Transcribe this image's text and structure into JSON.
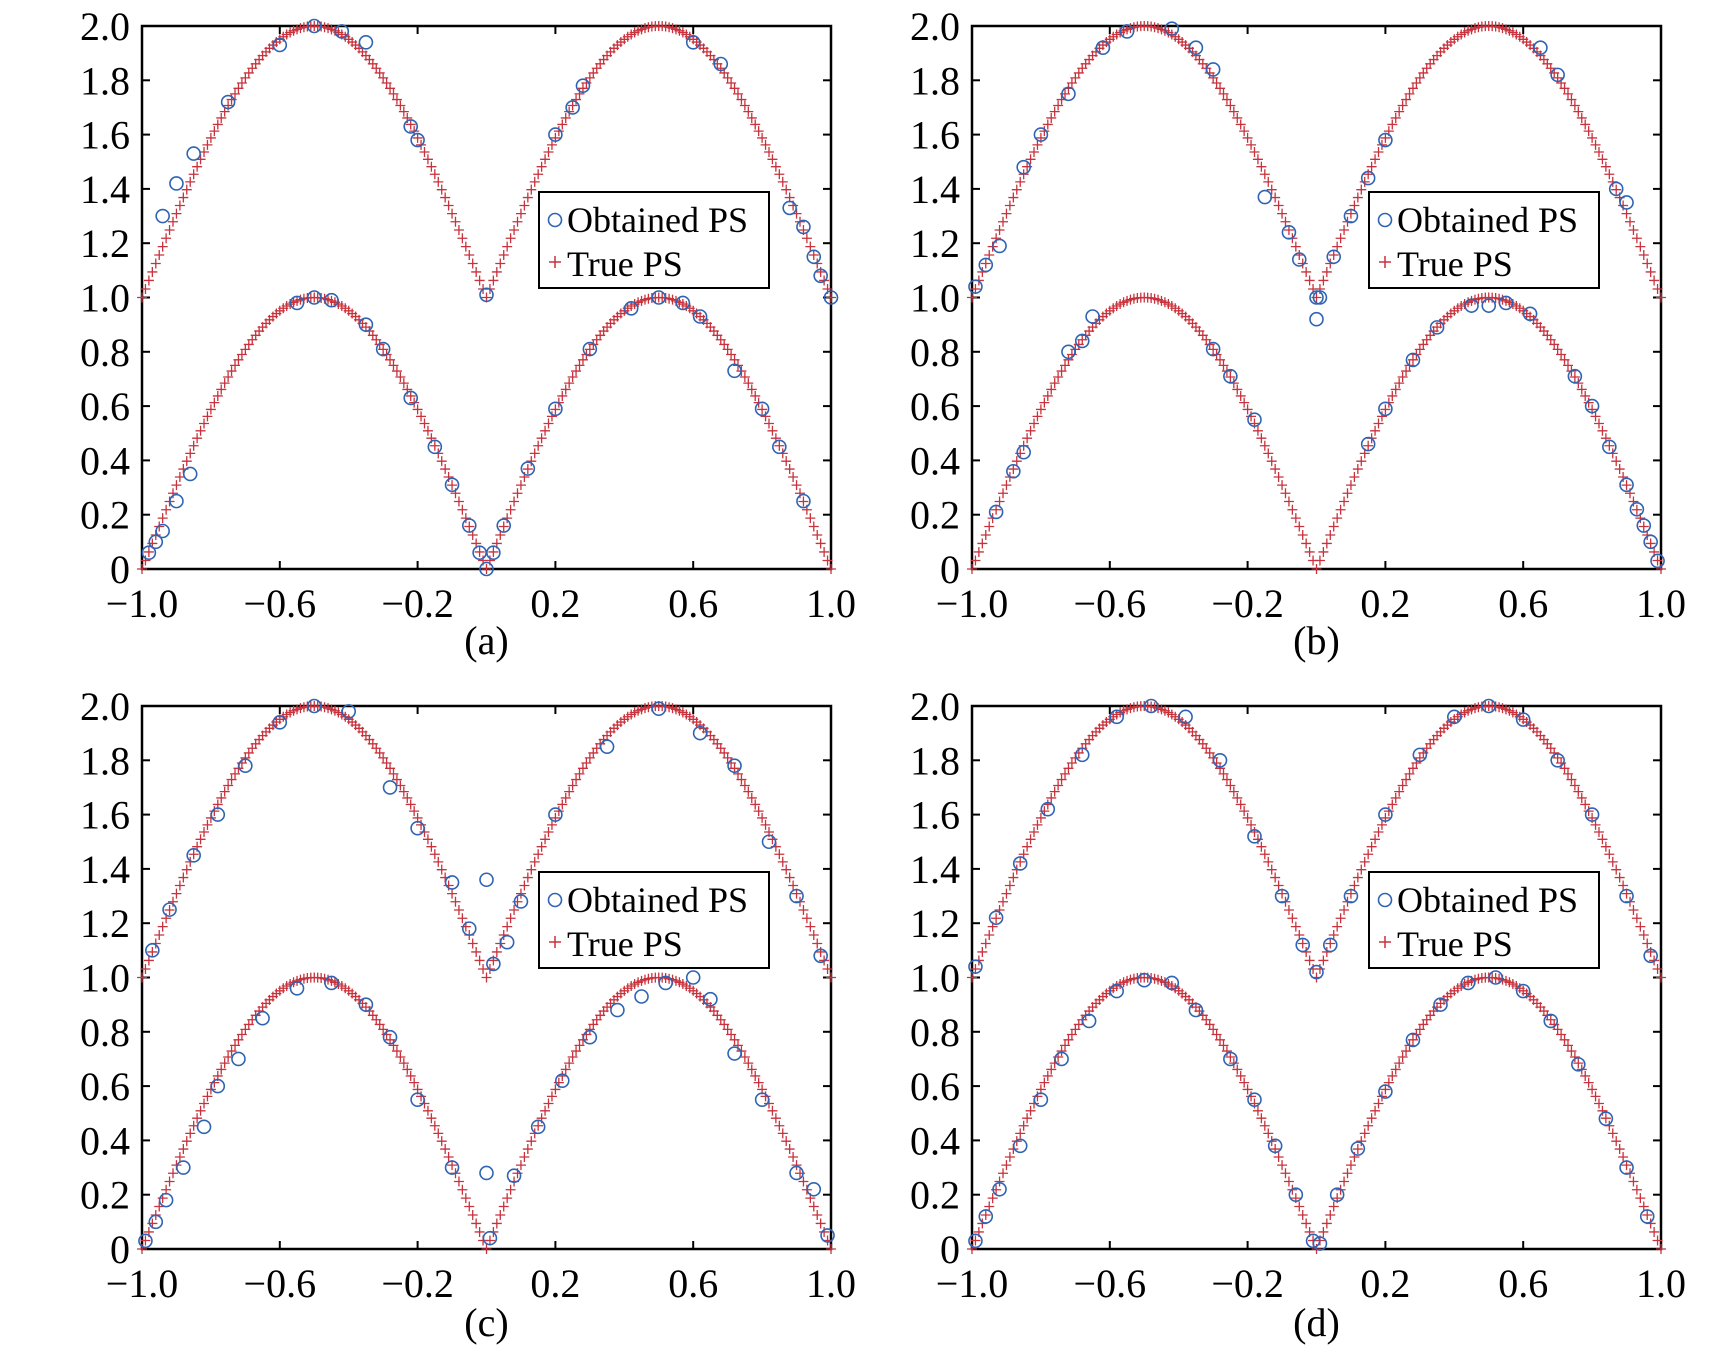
{
  "colors": {
    "obtained": "#2e64b4",
    "true": "#c8323c",
    "axis": "#000000"
  },
  "legend": {
    "obtained_label": "Obtained PS",
    "true_label": "True PS"
  },
  "chart_data": [
    {
      "type": "scatter",
      "caption": "(a)",
      "xlim": [
        -1.0,
        1.0
      ],
      "ylim": [
        0,
        2.0
      ],
      "xticks": [
        "−1.0",
        "−0.6",
        "−0.2",
        "0.2",
        "0.6",
        "1.0"
      ],
      "xtick_values": [
        -1.0,
        -0.6,
        -0.2,
        0.2,
        0.6,
        1.0
      ],
      "yticks": [
        "0",
        "0.2",
        "0.4",
        "0.6",
        "0.8",
        "1.0",
        "1.2",
        "1.4",
        "1.6",
        "1.8",
        "2.0"
      ],
      "ytick_values": [
        0,
        0.2,
        0.4,
        0.6,
        0.8,
        1.0,
        1.2,
        1.4,
        1.6,
        1.8,
        2.0
      ],
      "legend_position": "right",
      "series": [
        {
          "name": "Obtained PS",
          "marker": "circle",
          "points": [
            [
              -0.98,
              0.06
            ],
            [
              -0.96,
              0.1
            ],
            [
              -0.94,
              0.14
            ],
            [
              -0.9,
              0.25
            ],
            [
              -0.86,
              0.35
            ],
            [
              -0.55,
              0.98
            ],
            [
              -0.5,
              1.0
            ],
            [
              -0.45,
              0.99
            ],
            [
              -0.35,
              0.9
            ],
            [
              -0.3,
              0.81
            ],
            [
              -0.22,
              0.63
            ],
            [
              -0.15,
              0.45
            ],
            [
              -0.1,
              0.31
            ],
            [
              -0.05,
              0.16
            ],
            [
              -0.02,
              0.06
            ],
            [
              0.0,
              0.0
            ],
            [
              0.02,
              0.06
            ],
            [
              0.05,
              0.16
            ],
            [
              0.12,
              0.37
            ],
            [
              0.2,
              0.59
            ],
            [
              0.3,
              0.81
            ],
            [
              0.42,
              0.96
            ],
            [
              0.5,
              1.0
            ],
            [
              0.57,
              0.98
            ],
            [
              0.62,
              0.93
            ],
            [
              0.72,
              0.73
            ],
            [
              0.8,
              0.59
            ],
            [
              0.85,
              0.45
            ],
            [
              0.92,
              0.25
            ],
            [
              -0.94,
              1.3
            ],
            [
              -0.9,
              1.42
            ],
            [
              -0.85,
              1.53
            ],
            [
              -0.75,
              1.72
            ],
            [
              -0.6,
              1.93
            ],
            [
              -0.5,
              2.0
            ],
            [
              -0.42,
              1.98
            ],
            [
              -0.35,
              1.94
            ],
            [
              -0.22,
              1.63
            ],
            [
              -0.2,
              1.58
            ],
            [
              0.0,
              1.01
            ],
            [
              0.2,
              1.6
            ],
            [
              0.25,
              1.7
            ],
            [
              0.28,
              1.78
            ],
            [
              0.6,
              1.94
            ],
            [
              0.68,
              1.86
            ],
            [
              0.88,
              1.33
            ],
            [
              0.92,
              1.26
            ],
            [
              0.95,
              1.15
            ],
            [
              0.97,
              1.08
            ],
            [
              1.0,
              1.0
            ]
          ]
        },
        {
          "name": "True PS",
          "marker": "plus",
          "function": "|sin(pi*x)|, 1+|sin(pi*x)|",
          "x_range": [
            -1.0,
            1.0
          ]
        }
      ]
    },
    {
      "type": "scatter",
      "caption": "(b)",
      "xlim": [
        -1.0,
        1.0
      ],
      "ylim": [
        0,
        2.0
      ],
      "xticks": [
        "−1.0",
        "−0.6",
        "−0.2",
        "0.2",
        "0.6",
        "1.0"
      ],
      "xtick_values": [
        -1.0,
        -0.6,
        -0.2,
        0.2,
        0.6,
        1.0
      ],
      "yticks": [
        "0",
        "0.2",
        "0.4",
        "0.6",
        "0.8",
        "1.0",
        "1.2",
        "1.4",
        "1.6",
        "1.8",
        "2.0"
      ],
      "ytick_values": [
        0,
        0.2,
        0.4,
        0.6,
        0.8,
        1.0,
        1.2,
        1.4,
        1.6,
        1.8,
        2.0
      ],
      "legend_position": "right",
      "series": [
        {
          "name": "Obtained PS",
          "marker": "circle",
          "points": [
            [
              -0.93,
              0.21
            ],
            [
              -0.88,
              0.36
            ],
            [
              -0.85,
              0.43
            ],
            [
              -0.72,
              0.8
            ],
            [
              -0.68,
              0.84
            ],
            [
              -0.65,
              0.93
            ],
            [
              -0.3,
              0.81
            ],
            [
              -0.25,
              0.71
            ],
            [
              -0.18,
              0.55
            ],
            [
              0.15,
              0.46
            ],
            [
              0.2,
              0.59
            ],
            [
              0.28,
              0.77
            ],
            [
              0.35,
              0.89
            ],
            [
              0.45,
              0.97
            ],
            [
              0.5,
              0.97
            ],
            [
              0.55,
              0.98
            ],
            [
              0.62,
              0.94
            ],
            [
              0.75,
              0.71
            ],
            [
              0.8,
              0.6
            ],
            [
              0.85,
              0.45
            ],
            [
              0.9,
              0.31
            ],
            [
              0.93,
              0.22
            ],
            [
              0.95,
              0.16
            ],
            [
              0.97,
              0.1
            ],
            [
              0.99,
              0.03
            ],
            [
              -0.99,
              1.04
            ],
            [
              -0.96,
              1.12
            ],
            [
              -0.92,
              1.19
            ],
            [
              -0.85,
              1.48
            ],
            [
              -0.8,
              1.6
            ],
            [
              -0.72,
              1.75
            ],
            [
              -0.62,
              1.92
            ],
            [
              -0.55,
              1.98
            ],
            [
              -0.42,
              1.99
            ],
            [
              -0.35,
              1.92
            ],
            [
              -0.3,
              1.84
            ],
            [
              -0.15,
              1.37
            ],
            [
              -0.08,
              1.24
            ],
            [
              -0.05,
              1.14
            ],
            [
              0.0,
              1.0
            ],
            [
              0.0,
              0.92
            ],
            [
              0.01,
              1.0
            ],
            [
              0.05,
              1.15
            ],
            [
              0.1,
              1.3
            ],
            [
              0.15,
              1.44
            ],
            [
              0.2,
              1.58
            ],
            [
              0.65,
              1.92
            ],
            [
              0.7,
              1.82
            ],
            [
              0.87,
              1.4
            ],
            [
              0.9,
              1.35
            ]
          ]
        },
        {
          "name": "True PS",
          "marker": "plus",
          "function": "|sin(pi*x)|, 1+|sin(pi*x)|",
          "x_range": [
            -1.0,
            1.0
          ]
        }
      ]
    },
    {
      "type": "scatter",
      "caption": "(c)",
      "xlim": [
        -1.0,
        1.0
      ],
      "ylim": [
        0,
        2.0
      ],
      "xticks": [
        "−1.0",
        "−0.6",
        "−0.2",
        "0.2",
        "0.6",
        "1.0"
      ],
      "xtick_values": [
        -1.0,
        -0.6,
        -0.2,
        0.2,
        0.6,
        1.0
      ],
      "yticks": [
        "0",
        "0.2",
        "0.4",
        "0.6",
        "0.8",
        "1.0",
        "1.2",
        "1.4",
        "1.6",
        "1.8",
        "2.0"
      ],
      "ytick_values": [
        0,
        0.2,
        0.4,
        0.6,
        0.8,
        1.0,
        1.2,
        1.4,
        1.6,
        1.8,
        2.0
      ],
      "legend_position": "right",
      "series": [
        {
          "name": "Obtained PS",
          "marker": "circle",
          "points": [
            [
              -0.99,
              0.03
            ],
            [
              -0.96,
              0.1
            ],
            [
              -0.93,
              0.18
            ],
            [
              -0.88,
              0.3
            ],
            [
              -0.82,
              0.45
            ],
            [
              -0.78,
              0.6
            ],
            [
              -0.72,
              0.7
            ],
            [
              -0.65,
              0.85
            ],
            [
              -0.55,
              0.96
            ],
            [
              -0.45,
              0.98
            ],
            [
              -0.35,
              0.9
            ],
            [
              -0.28,
              0.78
            ],
            [
              -0.2,
              0.55
            ],
            [
              -0.1,
              0.3
            ],
            [
              0.0,
              0.28
            ],
            [
              0.01,
              0.04
            ],
            [
              0.08,
              0.27
            ],
            [
              0.15,
              0.45
            ],
            [
              0.22,
              0.62
            ],
            [
              0.3,
              0.78
            ],
            [
              0.38,
              0.88
            ],
            [
              0.45,
              0.93
            ],
            [
              0.52,
              0.98
            ],
            [
              0.6,
              1.0
            ],
            [
              0.65,
              0.92
            ],
            [
              0.72,
              0.72
            ],
            [
              0.8,
              0.55
            ],
            [
              0.9,
              0.28
            ],
            [
              0.95,
              0.22
            ],
            [
              0.99,
              0.05
            ],
            [
              -0.97,
              1.1
            ],
            [
              -0.92,
              1.25
            ],
            [
              -0.85,
              1.45
            ],
            [
              -0.78,
              1.6
            ],
            [
              -0.7,
              1.78
            ],
            [
              -0.6,
              1.94
            ],
            [
              -0.5,
              2.0
            ],
            [
              -0.4,
              1.98
            ],
            [
              -0.28,
              1.7
            ],
            [
              -0.2,
              1.55
            ],
            [
              -0.1,
              1.35
            ],
            [
              -0.05,
              1.18
            ],
            [
              0.0,
              1.36
            ],
            [
              0.02,
              1.05
            ],
            [
              0.06,
              1.13
            ],
            [
              0.1,
              1.28
            ],
            [
              0.2,
              1.6
            ],
            [
              0.35,
              1.85
            ],
            [
              0.5,
              1.99
            ],
            [
              0.62,
              1.9
            ],
            [
              0.72,
              1.78
            ],
            [
              0.82,
              1.5
            ],
            [
              0.9,
              1.3
            ],
            [
              0.97,
              1.08
            ]
          ]
        },
        {
          "name": "True PS",
          "marker": "plus",
          "function": "|sin(pi*x)|, 1+|sin(pi*x)|",
          "x_range": [
            -1.0,
            1.0
          ]
        }
      ]
    },
    {
      "type": "scatter",
      "caption": "(d)",
      "xlim": [
        -1.0,
        1.0
      ],
      "ylim": [
        0,
        2.0
      ],
      "xticks": [
        "−1.0",
        "−0.6",
        "−0.2",
        "0.2",
        "0.6",
        "1.0"
      ],
      "xtick_values": [
        -1.0,
        -0.6,
        -0.2,
        0.2,
        0.6,
        1.0
      ],
      "yticks": [
        "0",
        "0.2",
        "0.4",
        "0.6",
        "0.8",
        "1.0",
        "1.2",
        "1.4",
        "1.6",
        "1.8",
        "2.0"
      ],
      "ytick_values": [
        0,
        0.2,
        0.4,
        0.6,
        0.8,
        1.0,
        1.2,
        1.4,
        1.6,
        1.8,
        2.0
      ],
      "legend_position": "right",
      "series": [
        {
          "name": "Obtained PS",
          "marker": "circle",
          "points": [
            [
              -0.99,
              0.03
            ],
            [
              -0.96,
              0.12
            ],
            [
              -0.92,
              0.22
            ],
            [
              -0.86,
              0.38
            ],
            [
              -0.8,
              0.55
            ],
            [
              -0.74,
              0.7
            ],
            [
              -0.66,
              0.84
            ],
            [
              -0.58,
              0.95
            ],
            [
              -0.5,
              0.99
            ],
            [
              -0.42,
              0.98
            ],
            [
              -0.35,
              0.88
            ],
            [
              -0.25,
              0.7
            ],
            [
              -0.18,
              0.55
            ],
            [
              -0.12,
              0.38
            ],
            [
              -0.06,
              0.2
            ],
            [
              -0.01,
              0.03
            ],
            [
              0.01,
              0.02
            ],
            [
              0.06,
              0.2
            ],
            [
              0.12,
              0.37
            ],
            [
              0.2,
              0.58
            ],
            [
              0.28,
              0.77
            ],
            [
              0.36,
              0.9
            ],
            [
              0.44,
              0.98
            ],
            [
              0.52,
              1.0
            ],
            [
              0.6,
              0.95
            ],
            [
              0.68,
              0.84
            ],
            [
              0.76,
              0.68
            ],
            [
              0.84,
              0.48
            ],
            [
              0.9,
              0.3
            ],
            [
              0.96,
              0.12
            ],
            [
              -0.99,
              1.04
            ],
            [
              -0.93,
              1.22
            ],
            [
              -0.86,
              1.42
            ],
            [
              -0.78,
              1.62
            ],
            [
              -0.68,
              1.82
            ],
            [
              -0.58,
              1.96
            ],
            [
              -0.48,
              2.0
            ],
            [
              -0.38,
              1.96
            ],
            [
              -0.28,
              1.8
            ],
            [
              -0.18,
              1.52
            ],
            [
              -0.1,
              1.3
            ],
            [
              -0.04,
              1.12
            ],
            [
              0.0,
              1.02
            ],
            [
              0.04,
              1.12
            ],
            [
              0.1,
              1.3
            ],
            [
              0.2,
              1.6
            ],
            [
              0.3,
              1.82
            ],
            [
              0.4,
              1.96
            ],
            [
              0.5,
              2.0
            ],
            [
              0.6,
              1.95
            ],
            [
              0.7,
              1.8
            ],
            [
              0.8,
              1.6
            ],
            [
              0.9,
              1.3
            ],
            [
              0.97,
              1.08
            ]
          ]
        },
        {
          "name": "True PS",
          "marker": "plus",
          "function": "|sin(pi*x)|, 1+|sin(pi*x)|",
          "x_range": [
            -1.0,
            1.0
          ]
        }
      ]
    }
  ]
}
